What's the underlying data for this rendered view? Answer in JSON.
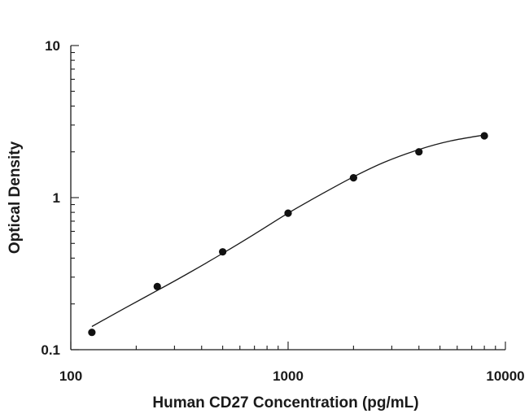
{
  "chart_data": {
    "type": "scatter",
    "xlabel": "Human CD27 Concentration (pg/mL)",
    "ylabel": "Optical Density",
    "x_scale": "log",
    "y_scale": "log",
    "xlim": [
      100,
      10000
    ],
    "ylim": [
      0.1,
      10
    ],
    "x_ticks": [
      {
        "value": 100,
        "label": "100"
      },
      {
        "value": 1000,
        "label": "1000"
      },
      {
        "value": 10000,
        "label": "10000"
      }
    ],
    "y_ticks": [
      {
        "value": 0.1,
        "label": "0.1"
      },
      {
        "value": 1,
        "label": "1"
      },
      {
        "value": 10,
        "label": "10"
      }
    ],
    "grid": false,
    "legend": "none",
    "series": [
      {
        "points": [
          {
            "x": 125,
            "y": 0.13
          },
          {
            "x": 250,
            "y": 0.26
          },
          {
            "x": 500,
            "y": 0.44
          },
          {
            "x": 1000,
            "y": 0.79
          },
          {
            "x": 2000,
            "y": 1.35
          },
          {
            "x": 4000,
            "y": 2.0
          },
          {
            "x": 8000,
            "y": 2.55
          }
        ]
      }
    ],
    "fit_curve": {
      "x": [
        125,
        180,
        250,
        350,
        500,
        700,
        1000,
        1400,
        2000,
        2800,
        4000,
        5600,
        8000
      ],
      "y": [
        0.142,
        0.19,
        0.245,
        0.32,
        0.43,
        0.575,
        0.79,
        1.04,
        1.37,
        1.72,
        2.07,
        2.36,
        2.58
      ]
    },
    "colors": {
      "marker": "#111111",
      "line": "#1a1a1a"
    }
  }
}
